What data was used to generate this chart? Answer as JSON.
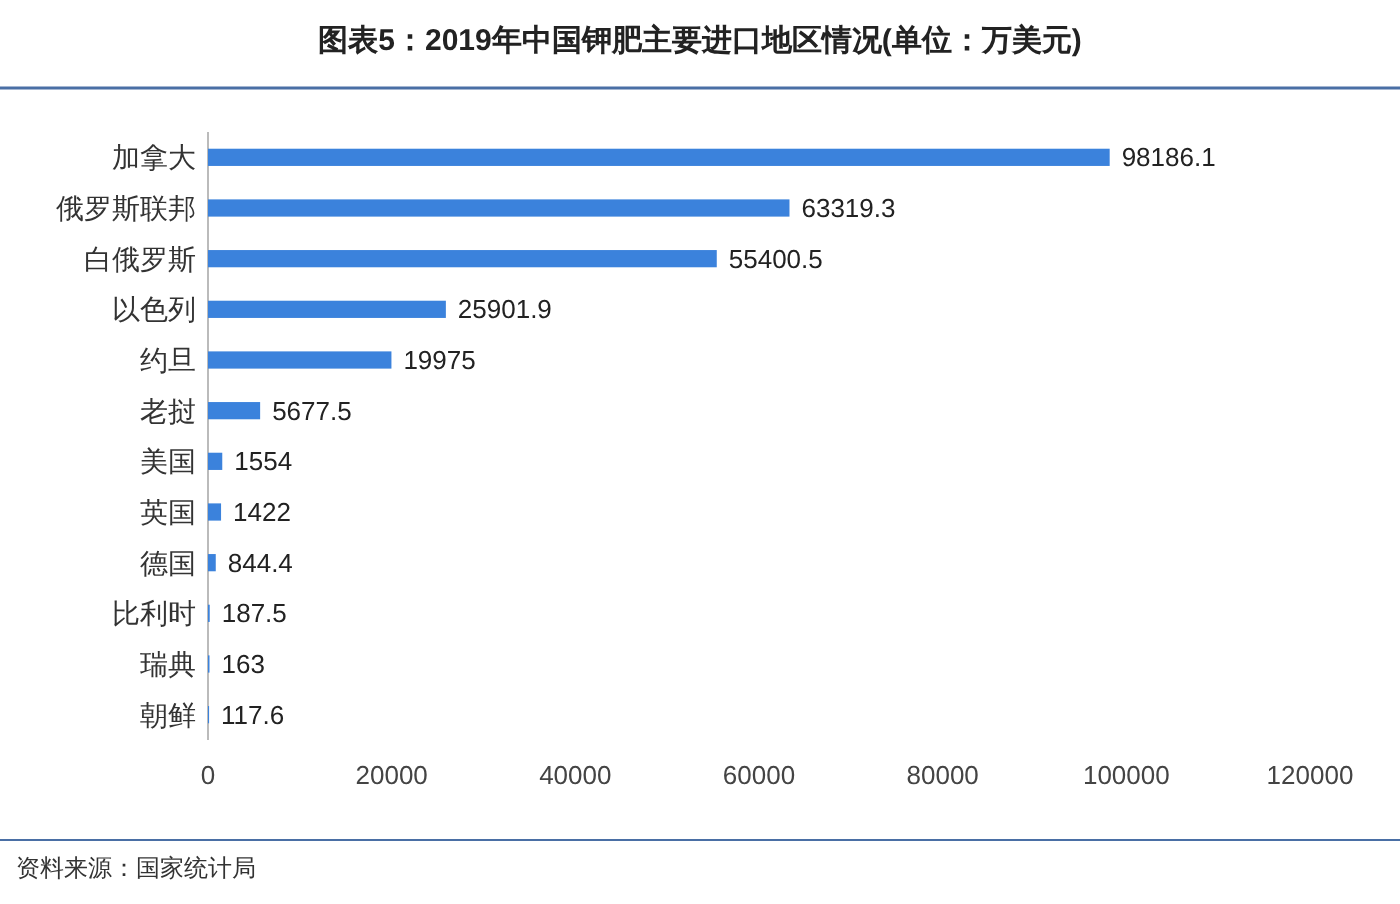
{
  "chart_data": {
    "type": "bar",
    "orientation": "horizontal",
    "title": "图表5：2019年中国钾肥主要进口地区情况(单位：万美元)",
    "categories": [
      "加拿大",
      "俄罗斯联邦",
      "白俄罗斯",
      "以色列",
      "约旦",
      "老挝",
      "美国",
      "英国",
      "德国",
      "比利时",
      "瑞典",
      "朝鲜"
    ],
    "values": [
      98186.1,
      63319.3,
      55400.5,
      25901.9,
      19975,
      5677.5,
      1554,
      1422,
      844.4,
      187.5,
      163,
      117.6
    ],
    "color": "#3b82dc",
    "xlim": [
      0,
      120000
    ],
    "xticks": [
      0,
      20000,
      40000,
      60000,
      80000,
      100000,
      120000
    ],
    "data_labels": true,
    "annotations": [
      "资料来源：国家统计局"
    ]
  }
}
